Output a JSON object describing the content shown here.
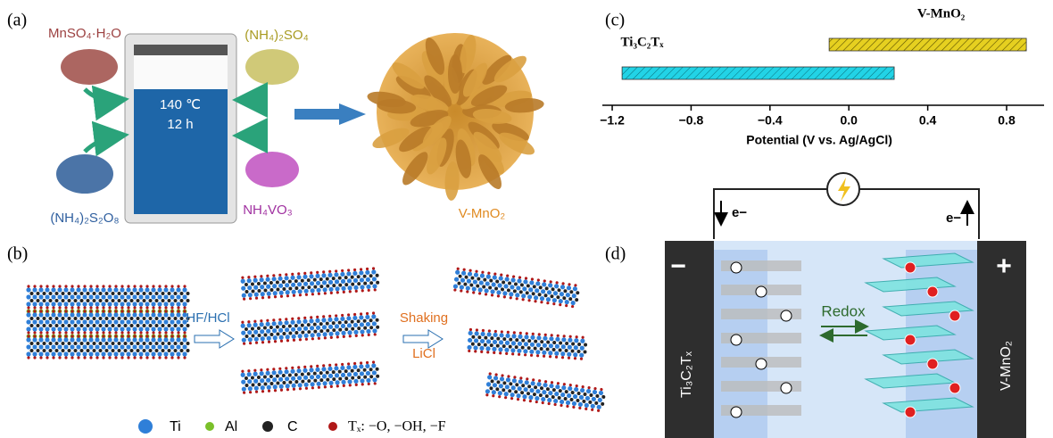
{
  "panels": {
    "a": "(a)",
    "b": "(b)",
    "c": "(c)",
    "d": "(d)"
  },
  "synthesis": {
    "reagents": [
      "MnSO₄·H₂O",
      "(NH₄)₂SO₄",
      "(NH₄)₂S₂O₈",
      "NH₄VO₃"
    ],
    "temperature": "140 ℃",
    "time": "12 h",
    "product": "V-MnO₂"
  },
  "exfoliation": {
    "step1": "HF/HCl",
    "step2": "Shaking",
    "step2_reagent": "LiCl",
    "legend": [
      "Ti",
      "Al",
      "C",
      "Tₓ: −O, −OH, −F"
    ]
  },
  "chart_data": {
    "type": "range",
    "xlabel": "Potential (V vs. Ag/AgCl)",
    "categories": [
      "Ti₃C₂Tₓ",
      "V-MnO₂"
    ],
    "start": [
      -1.15,
      -0.1
    ],
    "end": [
      0.23,
      0.9
    ],
    "colors": [
      "#22d3e6",
      "#e6d020"
    ],
    "xlim": [
      -1.25,
      0.99
    ],
    "xticks": [
      {
        "value": -1.2,
        "label": "−1.2"
      },
      {
        "value": -0.8,
        "label": "−0.8"
      },
      {
        "value": -0.4,
        "label": "−0.4"
      },
      {
        "value": 0,
        "label": "0.0"
      },
      {
        "value": 0.4,
        "label": "0.4"
      },
      {
        "value": 0.8,
        "label": "0.8"
      }
    ]
  },
  "device": {
    "electron_left": "e−",
    "electron_right": "e−",
    "negative": "−",
    "positive": "+",
    "anode": "Ti₃C₂Tₓ",
    "cathode": "V-MnO₂",
    "process": "Redox"
  }
}
